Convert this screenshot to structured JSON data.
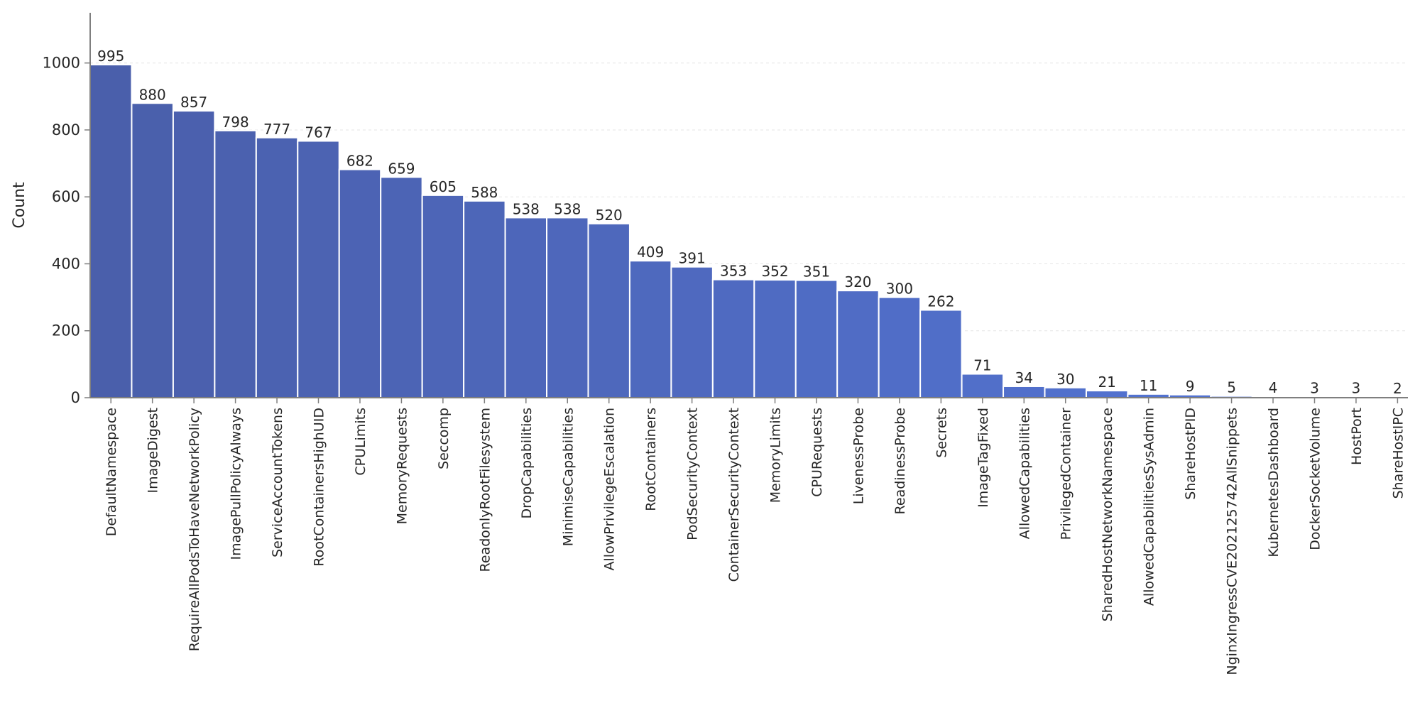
{
  "chart_data": {
    "type": "bar",
    "title": "",
    "xlabel": "",
    "ylabel": "Count",
    "ylim": [
      0,
      1150
    ],
    "yticks": [
      0,
      200,
      400,
      600,
      800,
      1000
    ],
    "grid": "y-dashed",
    "categories": [
      "DefaultNamespace",
      "ImageDigest",
      "RequireAllPodsToHaveNetworkPolicy",
      "ImagePullPolicyAlways",
      "ServiceAccountTokens",
      "RootContainersHighUID",
      "CPULimits",
      "MemoryRequests",
      "Seccomp",
      "ReadonlyRootFilesystem",
      "DropCapabilities",
      "MinimiseCapabilities",
      "AllowPrivilegeEscalation",
      "RootContainers",
      "PodSecurityContext",
      "ContainerSecurityContext",
      "MemoryLimits",
      "CPURequests",
      "LivenessProbe",
      "ReadinessProbe",
      "Secrets",
      "ImageTagFixed",
      "AllowedCapabilities",
      "PrivilegedContainer",
      "SharedHostNetworkNamespace",
      "AllowedCapabilitiesSysAdmin",
      "ShareHostPID",
      "NginxIngressCVE202125742AllSnippets",
      "KubernetesDashboard",
      "DockerSocketVolume",
      "HostPort",
      "ShareHostIPC"
    ],
    "values": [
      995,
      880,
      857,
      798,
      777,
      767,
      682,
      659,
      605,
      588,
      538,
      538,
      520,
      409,
      391,
      353,
      352,
      351,
      320,
      300,
      262,
      71,
      34,
      30,
      21,
      11,
      9,
      5,
      4,
      3,
      3,
      2
    ],
    "colors": {
      "bar_start": "#4a5fab",
      "bar_end": "#5476d8",
      "bar_edge": "#ffffff",
      "axis": "#7f7f7f",
      "grid": "#e6e6e6"
    }
  }
}
